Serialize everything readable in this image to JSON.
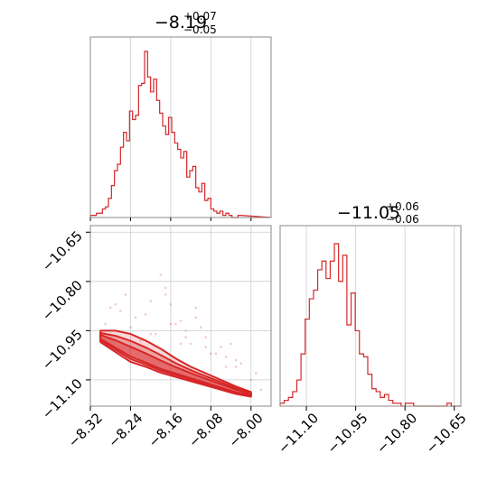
{
  "chart_data": {
    "type": "corner",
    "color": "#d62728",
    "grid": true,
    "params": [
      {
        "median": "−8.19",
        "err_plus": "+0.07",
        "err_minus": "−0.05",
        "range": [
          -8.32,
          -7.96
        ],
        "ticks": [
          -8.32,
          -8.24,
          -8.16,
          -8.08,
          -8.0
        ],
        "tick_labels": [
          "−8.32",
          "−8.24",
          "−8.16",
          "−8.08",
          "−8.00"
        ]
      },
      {
        "median": "−11.05",
        "err_plus": "+0.06",
        "err_minus": "−0.06",
        "range": [
          -11.18,
          -10.63
        ],
        "ticks": [
          -11.1,
          -10.95,
          -10.8,
          -10.65
        ],
        "tick_labels": [
          "−11.10",
          "−10.95",
          "−10.80",
          "−10.65"
        ]
      }
    ],
    "hist_1d": [
      {
        "bin_start": -8.32,
        "bin_width": 0.006,
        "counts": [
          1,
          1,
          2,
          2,
          4,
          5,
          9,
          15,
          22,
          25,
          33,
          40,
          36,
          50,
          46,
          48,
          62,
          63,
          78,
          66,
          59,
          65,
          55,
          49,
          43,
          39,
          47,
          40,
          35,
          32,
          28,
          31,
          19,
          22,
          24,
          14,
          12,
          16,
          8,
          9,
          4,
          3,
          2,
          3,
          1,
          2,
          1,
          0,
          0,
          1
        ]
      },
      {
        "bin_start": -11.18,
        "bin_width": 0.0127,
        "counts": [
          1,
          2,
          3,
          5,
          9,
          18,
          30,
          37,
          40,
          47,
          50,
          44,
          50,
          56,
          43,
          52,
          28,
          39,
          26,
          18,
          17,
          11,
          6,
          5,
          3,
          4,
          2,
          1,
          1,
          0,
          1,
          1,
          0,
          0,
          0,
          0,
          0,
          0,
          0,
          0,
          1,
          0,
          0
        ]
      }
    ],
    "scatter_2d": {
      "x": [
        -8.27,
        -8.25,
        -8.21,
        -8.18,
        -8.15,
        -8.13,
        -8.11,
        -8.09,
        -8.06,
        -8.04,
        -8.02,
        -8.0,
        -7.98,
        -8.23,
        -8.19,
        -8.17,
        -8.14,
        -8.12,
        -8.1,
        -8.07,
        -8.05,
        -8.03,
        -8.29,
        -8.26,
        -8.22,
        -8.2,
        -8.16,
        -8.08,
        -8.05,
        -7.99,
        -8.17,
        -8.14,
        -8.11,
        -8.24,
        -8.28,
        -8.09,
        -8.13,
        -8.2,
        -8.03,
        -8.16
      ],
      "y": [
        -10.87,
        -10.84,
        -10.9,
        -10.78,
        -10.93,
        -10.95,
        -10.88,
        -10.97,
        -11.0,
        -10.99,
        -11.05,
        -11.1,
        -11.13,
        -10.91,
        -10.96,
        -10.82,
        -10.92,
        -10.99,
        -10.94,
        -11.02,
        -11.06,
        -11.04,
        -10.93,
        -10.89,
        -10.98,
        -10.86,
        -10.93,
        -11.02,
        -11.03,
        -11.08,
        -10.84,
        -10.99,
        -10.91,
        -10.94,
        -10.88,
        -11.0,
        -10.97,
        -10.96,
        -11.06,
        -10.87
      ]
    },
    "density_ridge": {
      "x": [
        -8.3,
        -8.27,
        -8.24,
        -8.21,
        -8.18,
        -8.15,
        -8.12,
        -8.09,
        -8.06,
        -8.03,
        -8.0
      ],
      "y": [
        -10.97,
        -10.995,
        -11.02,
        -11.04,
        -11.06,
        -11.075,
        -11.09,
        -11.105,
        -11.12,
        -11.135,
        -11.145
      ],
      "upper_offset": [
        0.02,
        0.045,
        0.06,
        0.06,
        0.055,
        0.04,
        0.03,
        0.025,
        0.02,
        0.015,
        0.008
      ],
      "lower_offset": [
        0.015,
        0.02,
        0.025,
        0.02,
        0.018,
        0.016,
        0.014,
        0.012,
        0.01,
        0.008,
        0.006
      ]
    },
    "axis_label_x": "",
    "axis_label_y": ""
  }
}
